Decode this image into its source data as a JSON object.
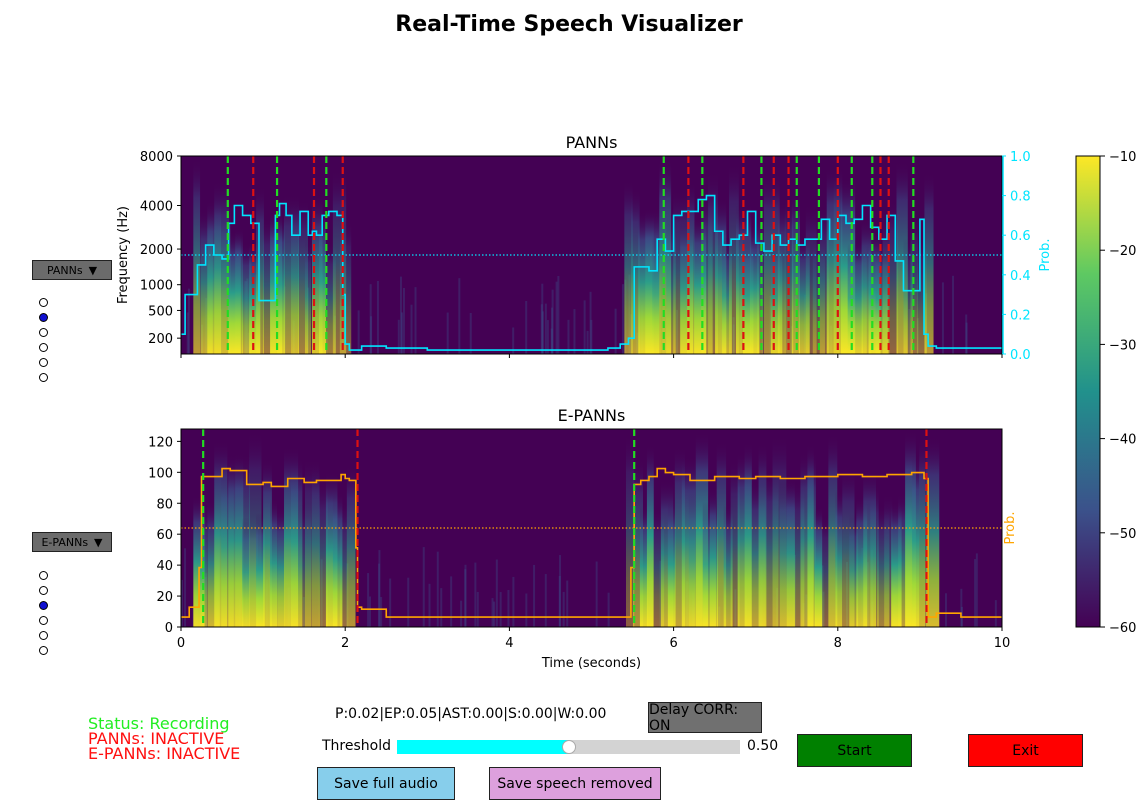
{
  "window": {
    "title": "Real-Time Speech Visualizer"
  },
  "colors": {
    "green_status": "#22ee22",
    "red_status": "#ff1010",
    "cyan": "#00e5ff",
    "orange": "#ffa500",
    "start_btn": "#008000",
    "exit_btn": "#ff0000",
    "save_full_btn": "#87ceeb",
    "save_removed_btn": "#dda0dd",
    "delay_btn": "#707070",
    "speech_on_line": "#22dd22",
    "speech_off_line": "#dd1111"
  },
  "model_selectors": [
    {
      "label": "PANNs",
      "icon": "triangle-down-icon",
      "options_count": 6,
      "selected_index": 1
    },
    {
      "label": "E-PANNs",
      "icon": "triangle-down-icon",
      "options_count": 6,
      "selected_index": 2
    }
  ],
  "status": {
    "recording": "Status: Recording",
    "panns": "PANNs: INACTIVE",
    "epanns": "E-PANNs: INACTIVE"
  },
  "readout": "P:0.02|EP:0.05|AST:0.00|S:0.00|W:0.00",
  "threshold": {
    "label": "Threshold",
    "value": 0.5,
    "value_text": "0.50"
  },
  "buttons": {
    "delay": "Delay CORR: ON",
    "start": "Start",
    "exit": "Exit",
    "save_full": "Save full audio",
    "save_removed": "Save speech removed"
  },
  "chart_data": [
    {
      "type": "heatmap",
      "title": "PANNs",
      "ylabel": "Frequency (Hz)",
      "y_ticks": [
        "200",
        "500",
        "1000",
        "2000",
        "4000",
        "8000"
      ],
      "y2label": "Prob.",
      "y2_ticks": [
        "0.0",
        "0.2",
        "0.4",
        "0.6",
        "0.8",
        "1.0"
      ],
      "x_range": [
        0,
        10
      ],
      "threshold": 0.5,
      "prob_series": {
        "x": [
          0,
          0.05,
          0.12,
          0.2,
          0.3,
          0.4,
          0.5,
          0.58,
          0.65,
          0.75,
          0.85,
          0.9,
          0.95,
          1.05,
          1.15,
          1.2,
          1.28,
          1.35,
          1.45,
          1.55,
          1.6,
          1.65,
          1.72,
          1.8,
          1.9,
          1.97,
          2.0,
          2.05,
          2.2,
          2.5,
          3.0,
          3.5,
          4.0,
          4.5,
          5.0,
          5.2,
          5.35,
          5.45,
          5.52,
          5.58,
          5.7,
          5.8,
          5.9,
          6.0,
          6.1,
          6.2,
          6.3,
          6.4,
          6.5,
          6.6,
          6.7,
          6.8,
          6.9,
          7.0,
          7.1,
          7.2,
          7.3,
          7.4,
          7.5,
          7.6,
          7.7,
          7.8,
          7.9,
          8.0,
          8.1,
          8.2,
          8.3,
          8.4,
          8.5,
          8.6,
          8.7,
          8.8,
          8.9,
          9.0,
          9.05,
          9.1,
          9.2,
          9.5,
          9.8
        ],
        "y": [
          0.1,
          0.3,
          0.3,
          0.45,
          0.55,
          0.5,
          0.48,
          0.66,
          0.75,
          0.7,
          0.66,
          0.66,
          0.27,
          0.27,
          0.7,
          0.76,
          0.7,
          0.6,
          0.72,
          0.6,
          0.62,
          0.6,
          0.7,
          0.72,
          0.7,
          0.3,
          0.05,
          0.02,
          0.04,
          0.03,
          0.02,
          0.02,
          0.02,
          0.02,
          0.02,
          0.03,
          0.05,
          0.08,
          0.44,
          0.44,
          0.42,
          0.58,
          0.52,
          0.7,
          0.72,
          0.72,
          0.78,
          0.8,
          0.62,
          0.55,
          0.58,
          0.6,
          0.72,
          0.56,
          0.52,
          0.6,
          0.55,
          0.58,
          0.55,
          0.58,
          0.58,
          0.68,
          0.58,
          0.7,
          0.66,
          0.68,
          0.75,
          0.64,
          0.58,
          0.7,
          0.47,
          0.32,
          0.32,
          0.68,
          0.1,
          0.04,
          0.03,
          0.03,
          0.03
        ]
      },
      "speech_start_lines": [
        0.57,
        1.17,
        1.77,
        5.88,
        6.35,
        7.07,
        7.5,
        7.77,
        8.17,
        8.42,
        8.92
      ],
      "speech_end_lines": [
        0.88,
        1.62,
        1.97,
        6.18,
        6.85,
        7.22,
        7.4,
        8.0,
        8.52,
        8.62
      ],
      "speech_segments": [
        [
          0.15,
          2.0
        ],
        [
          5.4,
          9.1
        ]
      ]
    },
    {
      "type": "heatmap",
      "title": "E-PANNs",
      "xlabel": "Time (seconds)",
      "x_ticks": [
        "0",
        "2",
        "4",
        "6",
        "8",
        "10"
      ],
      "y_ticks": [
        "0",
        "20",
        "40",
        "60",
        "80",
        "100",
        "120"
      ],
      "y2label": "Prob.",
      "x_range": [
        0,
        10
      ],
      "threshold": 0.5,
      "prob_series": {
        "x": [
          0,
          0.1,
          0.22,
          0.25,
          0.5,
          0.6,
          0.8,
          1.0,
          1.1,
          1.3,
          1.5,
          1.65,
          1.8,
          1.95,
          2.0,
          2.05,
          2.13,
          2.15,
          2.2,
          2.5,
          3.0,
          4.0,
          5.0,
          5.4,
          5.48,
          5.52,
          5.6,
          5.7,
          5.8,
          5.9,
          6.0,
          6.2,
          6.5,
          6.8,
          7.0,
          7.3,
          7.6,
          8.0,
          8.3,
          8.6,
          8.9,
          9.05,
          9.1,
          9.2,
          9.5,
          9.8
        ],
        "y": [
          0.05,
          0.1,
          0.3,
          0.76,
          0.8,
          0.79,
          0.72,
          0.73,
          0.71,
          0.75,
          0.73,
          0.74,
          0.74,
          0.77,
          0.75,
          0.74,
          0.4,
          0.1,
          0.09,
          0.05,
          0.05,
          0.05,
          0.05,
          0.05,
          0.3,
          0.72,
          0.74,
          0.76,
          0.8,
          0.78,
          0.77,
          0.74,
          0.76,
          0.75,
          0.76,
          0.75,
          0.76,
          0.77,
          0.76,
          0.77,
          0.78,
          0.75,
          0.05,
          0.07,
          0.05,
          0.05
        ]
      },
      "speech_start_lines": [
        0.27,
        5.52
      ],
      "speech_end_lines": [
        2.15,
        9.08
      ],
      "speech_segments": [
        [
          0.15,
          2.1
        ],
        [
          5.42,
          9.1
        ]
      ]
    }
  ],
  "colorbar": {
    "ticks": [
      "−10",
      "−20",
      "−30",
      "−40",
      "−50",
      "−60"
    ],
    "range": [
      -60,
      -10
    ]
  }
}
